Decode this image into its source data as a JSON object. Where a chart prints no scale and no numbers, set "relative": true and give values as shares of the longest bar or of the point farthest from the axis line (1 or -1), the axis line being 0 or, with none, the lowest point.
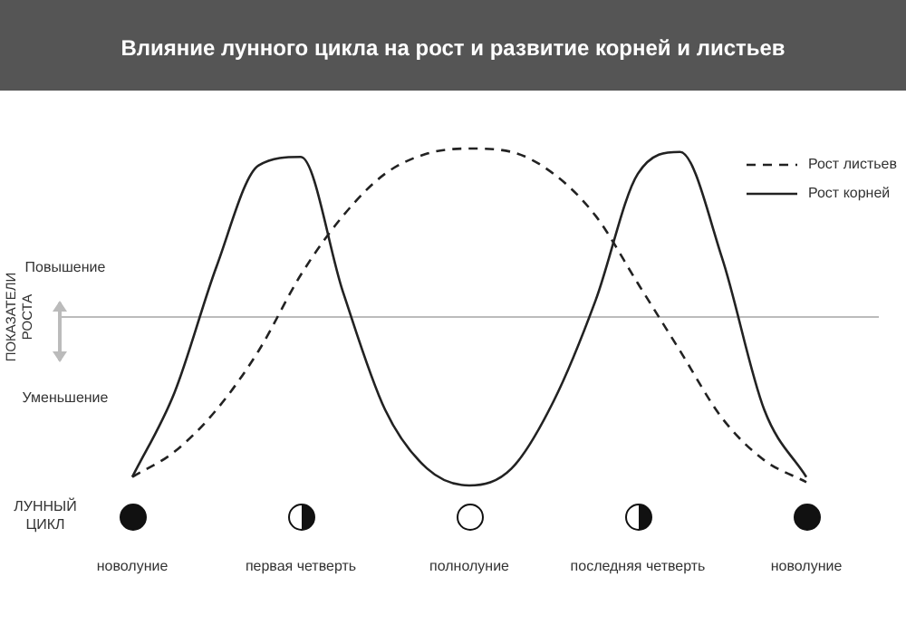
{
  "chart_data": {
    "type": "line",
    "relative": true,
    "title": "Влияние лунного цикла на рост и развитие корней и листьев",
    "ylabel": "ПОКАЗАТЕЛИ РОСТА",
    "xlabel": "ЛУННЫЙ ЦИКЛ",
    "legend": "top right",
    "marker": "none",
    "categories": [
      "новолуние",
      null,
      null,
      null,
      "первая четверть",
      null,
      null,
      null,
      "полнолуние",
      null,
      null,
      null,
      "последняя четверть",
      null,
      null,
      null,
      "новолуние"
    ],
    "series": [
      {
        "name": "Рост листьев",
        "color": "#222222",
        "line_style": "dashed",
        "values": [
          -0.95,
          -0.8,
          -0.55,
          -0.2,
          0.25,
          0.6,
          0.85,
          0.97,
          1,
          0.98,
          0.85,
          0.6,
          0.2,
          -0.2,
          -0.6,
          -0.85,
          -0.98
        ]
      },
      {
        "name": "Рост корней",
        "color": "#222222",
        "line_style": "solid",
        "values": [
          -0.95,
          -0.45,
          0.3,
          0.9,
          0.95,
          0.15,
          -0.55,
          -0.9,
          -1,
          -0.9,
          -0.5,
          0.1,
          0.85,
          0.98,
          0.35,
          -0.55,
          -0.95
        ]
      }
    ],
    "annotations": [
      "Повышение",
      "Уменьшение"
    ]
  }
}
